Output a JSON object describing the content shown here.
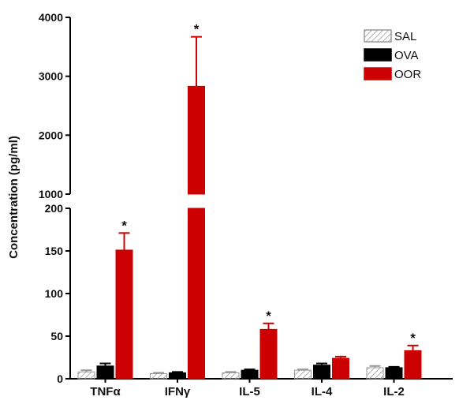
{
  "chart_data": {
    "type": "bar",
    "ylabel": "Concentration (pg/ml)",
    "categories": [
      "TNFα",
      "IFNγ",
      "IL-5",
      "IL-4",
      "IL-2"
    ],
    "series": [
      {
        "name": "SAL",
        "values": [
          8,
          6,
          7,
          10,
          13
        ],
        "errors": [
          2,
          1,
          1,
          1,
          2
        ],
        "pattern": "hatched",
        "color": "#9a9a9a"
      },
      {
        "name": "OVA",
        "values": [
          15,
          7,
          10,
          16,
          13
        ],
        "errors": [
          3,
          1,
          1,
          2,
          1
        ],
        "pattern": "solid",
        "color": "#000000"
      },
      {
        "name": "OOR",
        "values": [
          151,
          2830,
          58,
          24,
          33
        ],
        "errors": [
          20,
          840,
          7,
          2,
          6
        ],
        "pattern": "solid",
        "color": "#cc0000"
      }
    ],
    "significance": [
      "*",
      "*",
      "*",
      "",
      "*"
    ],
    "axis_lower": {
      "range": [
        0,
        200
      ],
      "ticks": [
        "0",
        "50",
        "100",
        "150",
        "200"
      ]
    },
    "axis_upper": {
      "range": [
        1000,
        4000
      ],
      "ticks": [
        "1000",
        "2000",
        "3000",
        "4000"
      ]
    },
    "legend_position": "top-right"
  }
}
